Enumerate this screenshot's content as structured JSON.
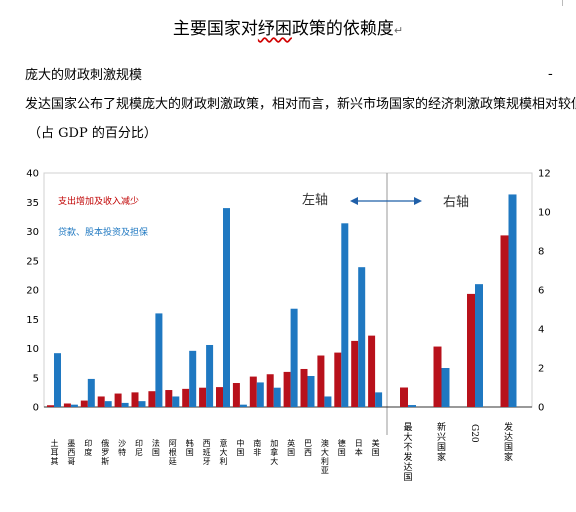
{
  "doc": {
    "title_main": "主要国家对",
    "title_squiggle": "纾困",
    "title_end": "政策的依赖度",
    "title_mark": "↵",
    "subtitle": "庞大的财政刺激规模",
    "description": "发达国家公布了规模庞大的财政刺激政策，相对而言，新兴市场国家的经济刺激政策规模相对较低。",
    "unit": "（占 GDP 的百分比）",
    "dash": "-"
  },
  "chart_data": {
    "type": "bar",
    "legend": [
      "支出增加及收入减少",
      "贷款、股本投资及担保"
    ],
    "colors": {
      "red": "#b8111b",
      "blue": "#1f78c1"
    },
    "left_panel": {
      "axis_label": "左轴",
      "ylim": [
        0,
        40
      ],
      "yticks": [
        0,
        5,
        10,
        15,
        20,
        25,
        30,
        35,
        40
      ],
      "categories": [
        "土耳其",
        "墨西哥",
        "印度",
        "俄罗斯",
        "沙特",
        "印尼",
        "法国",
        "阿根廷",
        "韩国",
        "西班牙",
        "意大利",
        "中国",
        "南非",
        "加拿大",
        "英国",
        "巴西",
        "澳大利亚",
        "德国",
        "日本",
        "美国"
      ],
      "series": [
        {
          "name": "支出增加及收入减少",
          "values": [
            0.3,
            0.6,
            1.1,
            1.8,
            2.3,
            2.5,
            2.7,
            2.9,
            3.1,
            3.3,
            3.4,
            4.1,
            5.2,
            5.6,
            6.0,
            6.5,
            8.8,
            9.3,
            11.3,
            12.2
          ]
        },
        {
          "name": "贷款、股本投资及担保",
          "values": [
            9.2,
            0.4,
            4.8,
            1.0,
            0.7,
            1.0,
            16.0,
            1.8,
            9.6,
            10.6,
            34.0,
            0.4,
            4.2,
            3.3,
            16.8,
            5.3,
            1.8,
            31.4,
            23.9,
            2.5
          ]
        }
      ]
    },
    "right_panel": {
      "axis_label": "右轴",
      "ylim": [
        0,
        12
      ],
      "yticks": [
        0,
        2,
        4,
        6,
        8,
        10,
        12
      ],
      "categories": [
        "最大不发达国",
        "新兴国家",
        "G20",
        "发达国家"
      ],
      "series": [
        {
          "name": "支出增加及收入减少",
          "values": [
            1.0,
            3.1,
            5.8,
            8.8
          ]
        },
        {
          "name": "贷款、股本投资及担保",
          "values": [
            0.1,
            2.0,
            6.3,
            10.9
          ]
        }
      ]
    }
  }
}
